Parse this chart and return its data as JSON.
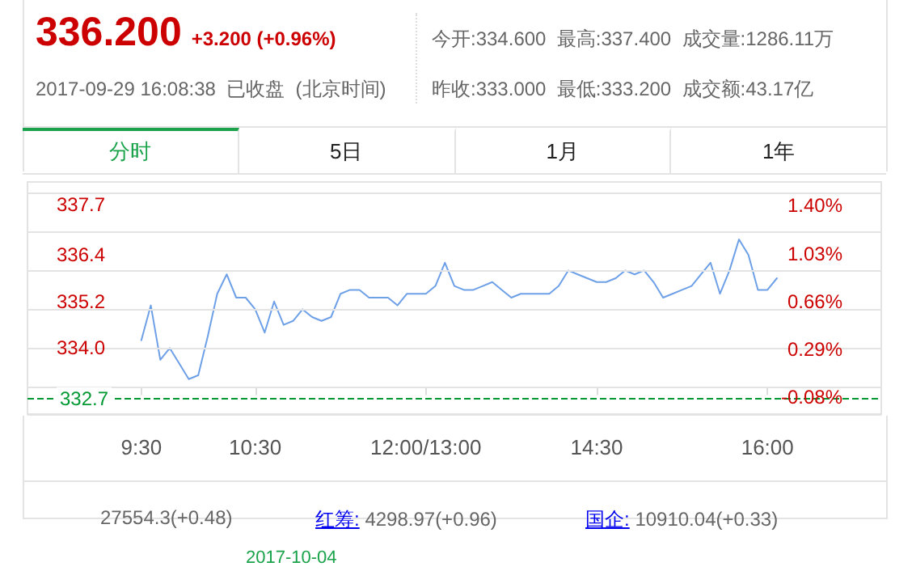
{
  "chart_data": {
    "type": "line",
    "title": "336.200",
    "subtitle": "+3.200 (+0.96%)",
    "annotations": [
      "2017-09-29 16:08:38  已收盘  (北京时间)",
      "今开:334.600",
      "最高:337.400",
      "成交量:1286.11万",
      "昨收:333.000",
      "最低:333.200",
      "成交额:43.17亿",
      "分时",
      "5日",
      "1月",
      "1年",
      "27554.3(+0.48)",
      "红筹:",
      "4298.97(+0.96)",
      "国企:",
      "10910.04(+0.33)",
      "2017-10-04"
    ],
    "categories": [
      null,
      null,
      null,
      null,
      null,
      null,
      null,
      null,
      null,
      null,
      null,
      null,
      "9:30",
      null,
      null,
      null,
      null,
      null,
      null,
      null,
      null,
      null,
      null,
      null,
      "10:30",
      null,
      null,
      null,
      null,
      null,
      null,
      null,
      null,
      null,
      null,
      null,
      null,
      null,
      null,
      null,
      null,
      null,
      "12:00/13:00",
      null,
      null,
      null,
      null,
      null,
      null,
      null,
      null,
      null,
      null,
      null,
      null,
      null,
      null,
      null,
      null,
      null,
      "14:30",
      null,
      null,
      null,
      null,
      null,
      null,
      null,
      null,
      null,
      null,
      null,
      null,
      null,
      null,
      null,
      null,
      null,
      "16:00",
      null,
      null,
      null,
      null,
      null,
      null,
      null,
      null,
      null,
      null,
      null,
      null
    ],
    "series": [
      {
        "color": "#6ea0e8",
        "values": [
          null,
          null,
          null,
          null,
          null,
          null,
          null,
          null,
          null,
          null,
          null,
          null,
          334.2,
          335.1,
          333.7,
          334.0,
          333.6,
          333.2,
          333.3,
          334.3,
          335.4,
          335.9,
          335.3,
          335.3,
          335.0,
          334.4,
          335.2,
          334.6,
          334.7,
          335.0,
          334.8,
          334.7,
          334.8,
          335.4,
          335.5,
          335.5,
          335.3,
          335.3,
          335.3,
          335.1,
          335.4,
          335.4,
          335.4,
          335.6,
          336.2,
          335.6,
          335.5,
          335.5,
          335.6,
          335.7,
          335.5,
          335.3,
          335.4,
          335.4,
          335.4,
          335.4,
          335.6,
          336.0,
          335.9,
          335.8,
          335.7,
          335.7,
          335.8,
          336.0,
          335.9,
          336.0,
          335.7,
          335.3,
          335.4,
          335.5,
          335.6,
          335.9,
          336.2,
          335.4,
          336.0,
          336.8,
          336.4,
          335.5,
          335.5,
          335.8,
          null,
          null,
          null,
          null,
          null,
          null,
          null,
          null,
          null,
          null,
          null
        ]
      }
    ],
    "ylim": [
      332.3,
      338.3
    ],
    "yticks": [
      332.7,
      {
        "value": 334,
        "label": "334.0"
      },
      335.2,
      336.4,
      337.7
    ],
    "y2lim": [
      -0.21,
      1.59
    ],
    "y2ticks": [
      {
        "value": -0.08,
        "label": "-0.08%"
      },
      {
        "value": 0.29,
        "label": "0.29%"
      },
      {
        "value": 0.66,
        "label": "0.66%"
      },
      {
        "value": 1.03,
        "label": "1.03%"
      },
      {
        "value": 1.4,
        "label": "1.40%"
      }
    ],
    "ref_lines": [
      {
        "axis": "y",
        "value": 332.7,
        "color": "#009933",
        "line_style": "dashed"
      }
    ],
    "grid": "y",
    "marker": "none",
    "line_style": "solid"
  }
}
